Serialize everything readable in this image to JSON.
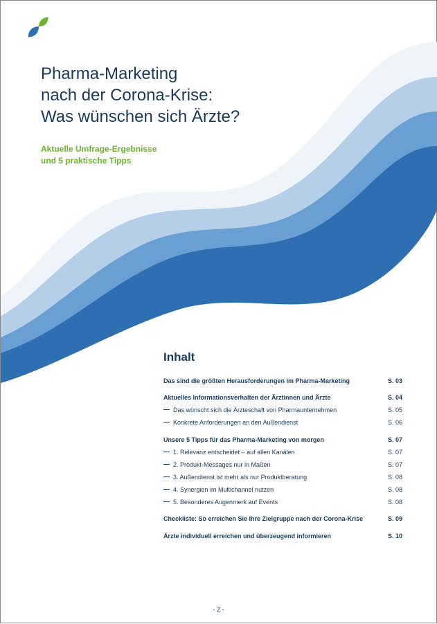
{
  "colors": {
    "text_primary": "#1a3a5c",
    "accent_green": "#6bb32e",
    "wave1": "#2d6fb0",
    "wave2": "#6a9fd4",
    "wave3": "#b5cfe9",
    "wave4": "#eef4fa",
    "leaf_green": "#6bb32e",
    "leaf_blue": "#2d6fb0"
  },
  "title": {
    "line1": "Pharma-Marketing",
    "line2": "nach der Corona-Krise:",
    "line3": "Was wünschen sich Ärzte?"
  },
  "subtitle": {
    "line1": "Aktuelle Umfrage-Ergebnisse",
    "line2": "und 5 praktische Tipps"
  },
  "toc_heading": "Inhalt",
  "toc": [
    {
      "type": "section",
      "label": "Das sind die größten Herausforderungen im Pharma-Marketing",
      "page": "S. 03"
    },
    {
      "type": "section",
      "label": "Aktuelles Informationsverhalten der Ärztinnen und Ärzte",
      "page": "S. 04"
    },
    {
      "type": "sub",
      "label": "Das wünscht sich die Ärzteschaft von Pharmaunternehmen",
      "page": "S. 05"
    },
    {
      "type": "sub",
      "label": "Konkrete Anforderungen an den Außendienst",
      "page": "S. 06"
    },
    {
      "type": "section",
      "label": "Unsere 5 Tipps für das Pharma-Marketing von morgen",
      "page": "S. 07"
    },
    {
      "type": "sub",
      "label": "1. Relevanz entscheidet – auf allen Kanälen",
      "page": "S. 07"
    },
    {
      "type": "sub",
      "label": "2. Produkt-Messages nur in Maßen",
      "page": "S. 07"
    },
    {
      "type": "sub",
      "label": "3. Außendienst ist mehr als nur Produktberatung",
      "page": "S. 08"
    },
    {
      "type": "sub",
      "label": "4. Synergien im Multichannel nutzen",
      "page": "S. 08"
    },
    {
      "type": "sub",
      "label": "5. Besonderes Augenmerk auf Events",
      "page": "S. 08"
    },
    {
      "type": "section",
      "label": "Checkliste: So erreichen Sie Ihre Zielgruppe nach der Corona-Krise",
      "page": "S. 09"
    },
    {
      "type": "section",
      "label": "Ärzte individuell erreichen und überzeugend informieren",
      "page": "S. 10"
    }
  ],
  "page_number": "- 2 -"
}
